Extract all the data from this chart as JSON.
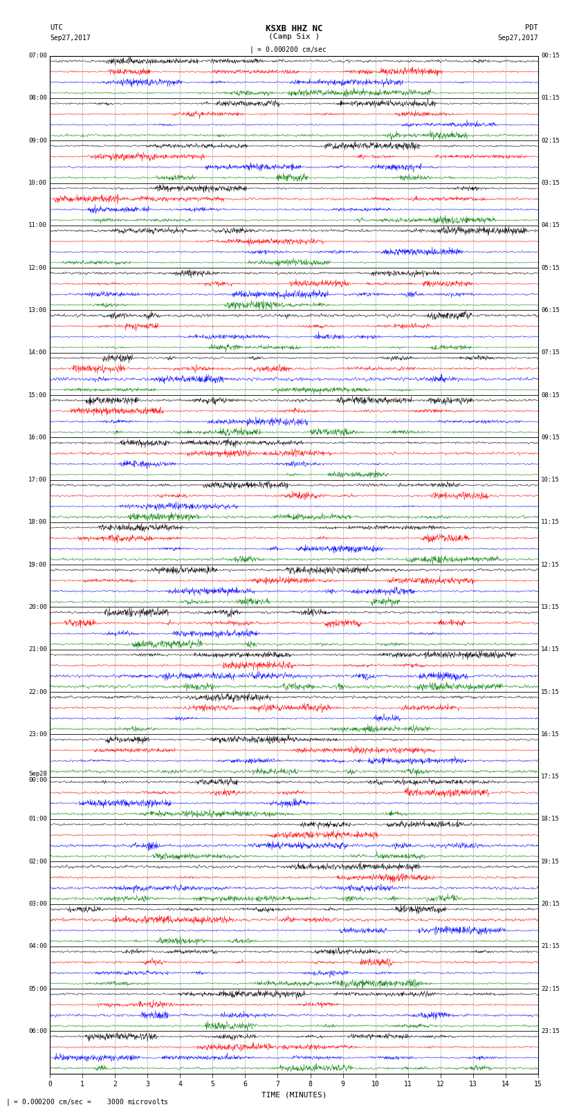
{
  "title": "KSXB HHZ NC",
  "subtitle": "(Camp Six )",
  "scale_text": "= 0.000200 cm/sec",
  "scale_note": "= 0.000200 cm/sec =    3000 microvolts",
  "xlabel": "TIME (MINUTES)",
  "left_times": [
    "07:00",
    "08:00",
    "09:00",
    "10:00",
    "11:00",
    "12:00",
    "13:00",
    "14:00",
    "15:00",
    "16:00",
    "17:00",
    "18:00",
    "19:00",
    "20:00",
    "21:00",
    "22:00",
    "23:00",
    "Sep28\n00:00",
    "01:00",
    "02:00",
    "03:00",
    "04:00",
    "05:00",
    "06:00"
  ],
  "right_times": [
    "00:15",
    "01:15",
    "02:15",
    "03:15",
    "04:15",
    "05:15",
    "06:15",
    "07:15",
    "08:15",
    "09:15",
    "10:15",
    "11:15",
    "12:15",
    "13:15",
    "14:15",
    "15:15",
    "16:15",
    "17:15",
    "18:15",
    "19:15",
    "20:15",
    "21:15",
    "22:15",
    "23:15"
  ],
  "trace_colors": [
    "black",
    "red",
    "blue",
    "green"
  ],
  "n_hours": 24,
  "n_minutes": 15,
  "samples_per_minute": 120,
  "background_color": "white",
  "grid_color": "#999999",
  "amplitude_scale": 0.12
}
